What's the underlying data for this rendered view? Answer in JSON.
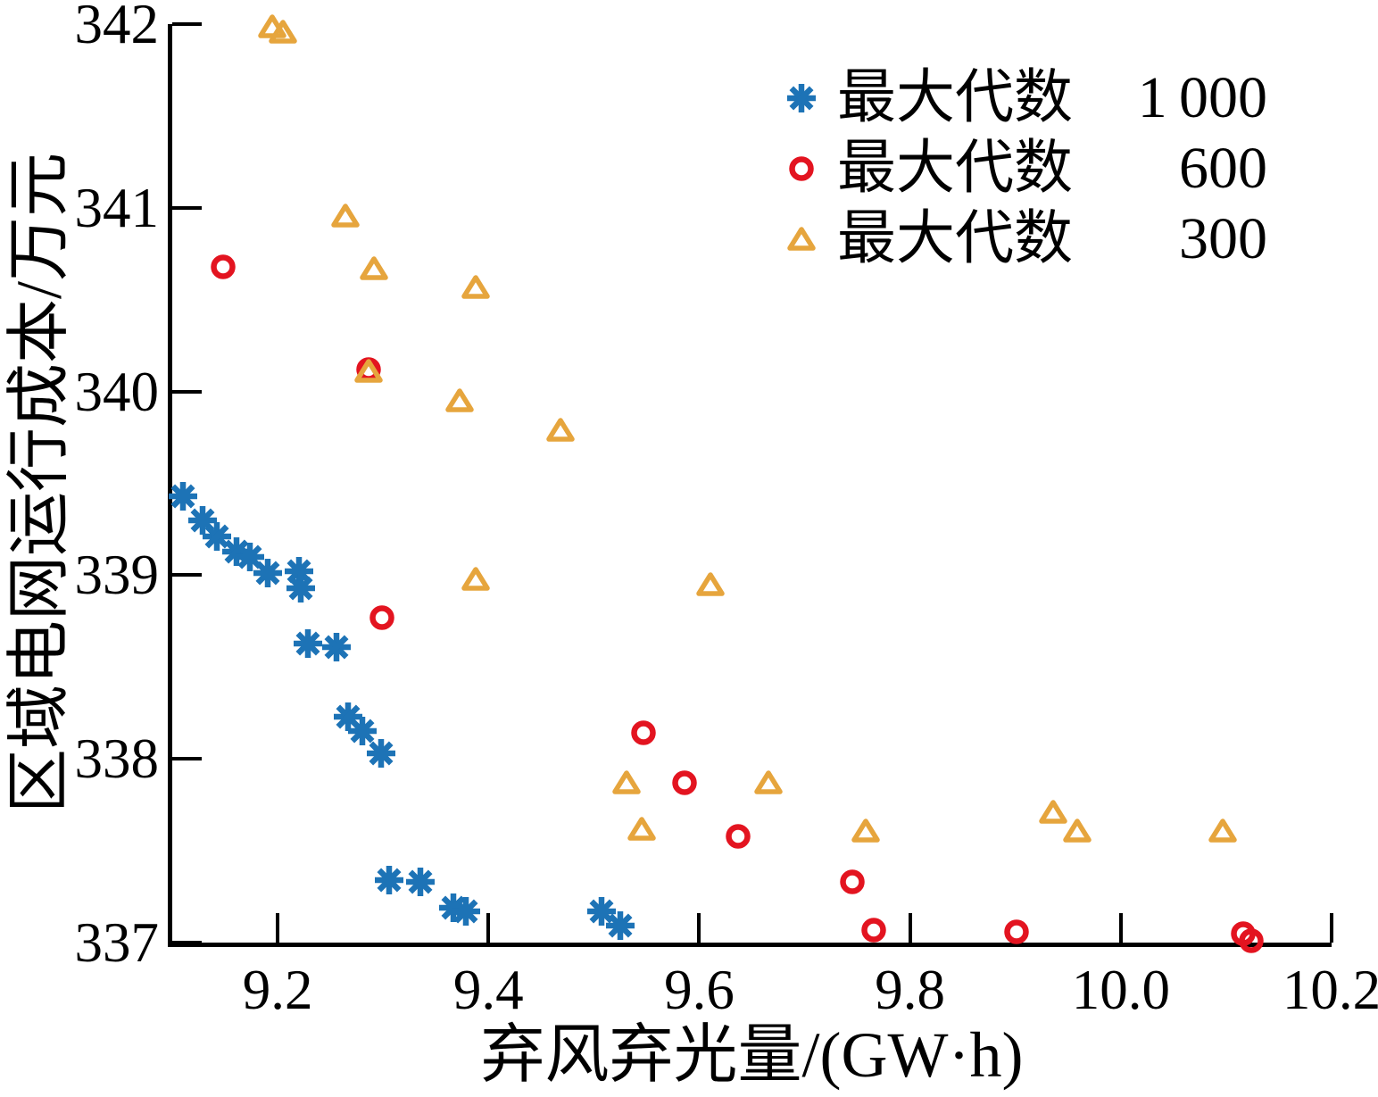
{
  "figure": {
    "background": "#ffffff",
    "axis_color": "#000000"
  },
  "colors": {
    "series_1000": "#1d73b6",
    "series_600": "#e31420",
    "series_300": "#e6a53d"
  },
  "chart_data": {
    "type": "scatter",
    "title": "",
    "xlabel": "弃风弃光量/(GW·h)",
    "ylabel": "区域电网运行成本/万元",
    "xlim": [
      9.1,
      10.2
    ],
    "ylim": [
      337,
      342
    ],
    "grid": false,
    "legend_position": "top-right-inside",
    "x_ticks": {
      "values": [
        9.2,
        9.4,
        9.6,
        9.8,
        10.0,
        10.2
      ],
      "labels": [
        "9.2",
        "9.4",
        "9.6",
        "9.8",
        "10.0",
        "10.2"
      ]
    },
    "y_ticks": {
      "values": [
        337,
        338,
        339,
        340,
        341,
        342
      ],
      "labels": [
        "337",
        "338",
        "339",
        "340",
        "341",
        "342"
      ]
    },
    "series": [
      {
        "name": "最大代数 1 000",
        "marker": "asterisk",
        "color": "#1d73b6",
        "points": [
          [
            9.11,
            339.43
          ],
          [
            9.129,
            339.3
          ],
          [
            9.142,
            339.21
          ],
          [
            9.161,
            339.13
          ],
          [
            9.174,
            339.1
          ],
          [
            9.191,
            339.01
          ],
          [
            9.22,
            339.02
          ],
          [
            9.222,
            338.93
          ],
          [
            9.229,
            338.63
          ],
          [
            9.256,
            338.61
          ],
          [
            9.267,
            338.23
          ],
          [
            9.28,
            338.15
          ],
          [
            9.298,
            338.03
          ],
          [
            9.306,
            337.34
          ],
          [
            9.335,
            337.33
          ],
          [
            9.367,
            337.19
          ],
          [
            9.379,
            337.17
          ],
          [
            9.507,
            337.17
          ],
          [
            9.525,
            337.09
          ]
        ]
      },
      {
        "name": "最大代数 600",
        "marker": "circle",
        "color": "#e31420",
        "points": [
          [
            9.148,
            340.68
          ],
          [
            9.286,
            340.12
          ],
          [
            9.299,
            338.77
          ],
          [
            9.547,
            338.14
          ],
          [
            9.586,
            337.87
          ],
          [
            9.637,
            337.58
          ],
          [
            9.745,
            337.33
          ],
          [
            9.766,
            337.07
          ],
          [
            9.901,
            337.06
          ],
          [
            10.116,
            337.05
          ],
          [
            10.124,
            337.01
          ]
        ]
      },
      {
        "name": "最大代数 300",
        "marker": "triangle",
        "color": "#e6a53d",
        "points": [
          [
            9.195,
            341.99
          ],
          [
            9.205,
            341.96
          ],
          [
            9.264,
            340.96
          ],
          [
            9.291,
            340.67
          ],
          [
            9.388,
            340.57
          ],
          [
            9.286,
            340.11
          ],
          [
            9.373,
            339.95
          ],
          [
            9.468,
            339.79
          ],
          [
            9.388,
            338.98
          ],
          [
            9.611,
            338.95
          ],
          [
            9.531,
            337.87
          ],
          [
            9.666,
            337.87
          ],
          [
            9.545,
            337.62
          ],
          [
            9.758,
            337.61
          ],
          [
            9.936,
            337.71
          ],
          [
            9.959,
            337.61
          ],
          [
            10.097,
            337.61
          ]
        ]
      }
    ]
  },
  "legend": {
    "items": [
      {
        "label": "最大代数",
        "value": "1 000",
        "marker": "asterisk",
        "color": "#1d73b6"
      },
      {
        "label": "最大代数",
        "value": "600",
        "marker": "circle",
        "color": "#e31420"
      },
      {
        "label": "最大代数",
        "value": "300",
        "marker": "triangle",
        "color": "#e6a53d"
      }
    ]
  }
}
